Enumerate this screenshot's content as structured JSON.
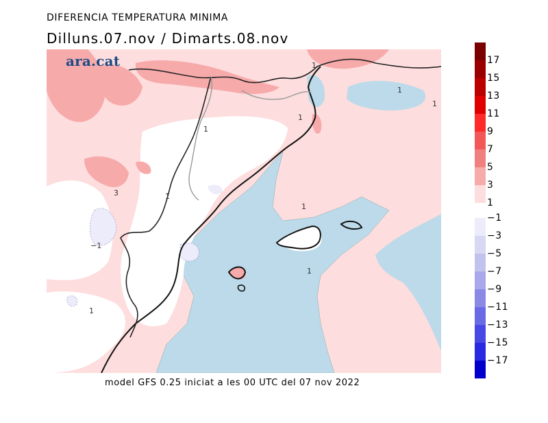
{
  "title": "DIFERENCIA TEMPERATURA MINIMA",
  "subtitle": "Dilluns.07.nov  /  Dimarts.08.nov",
  "brand": "ara.cat",
  "footer": "model GFS 0.25 iniciat a les 00 UTC del 07 nov 2022",
  "legend": {
    "warm": [
      {
        "label": "17",
        "color": "#7a0000"
      },
      {
        "label": "15",
        "color": "#9a0000"
      },
      {
        "label": "13",
        "color": "#bc0000"
      },
      {
        "label": "11",
        "color": "#e00000"
      },
      {
        "label": "9",
        "color": "#ff2a2a"
      },
      {
        "label": "7",
        "color": "#f25858"
      },
      {
        "label": "5",
        "color": "#f08080"
      },
      {
        "label": "3",
        "color": "#f7aaaa"
      },
      {
        "label": "1",
        "color": "#fddddd"
      }
    ],
    "cold": [
      {
        "label": "−1",
        "color": "#ececfa"
      },
      {
        "label": "−3",
        "color": "#d8d8f5"
      },
      {
        "label": "−5",
        "color": "#c2c2ef"
      },
      {
        "label": "−7",
        "color": "#a8a8ea"
      },
      {
        "label": "−9",
        "color": "#8a8ae6"
      },
      {
        "label": "−11",
        "color": "#6a6ae6"
      },
      {
        "label": "−13",
        "color": "#4848e4"
      },
      {
        "label": "−15",
        "color": "#2a2ae0"
      },
      {
        "label": "−17",
        "color": "#0000cc"
      }
    ]
  },
  "contour_labels": [
    "1",
    "1",
    "1",
    "1",
    "1",
    "3",
    "1",
    "−1",
    "1",
    "1",
    "1"
  ],
  "colors": {
    "sea_cool": "#bcdaea",
    "white_zone": "#ffffff",
    "pink_light": "#fddddd",
    "pink_mid": "#f7aaaa",
    "lavender": "#ececfa",
    "coast": "#111111",
    "border": "#333333",
    "brand": "#1c4a86"
  }
}
